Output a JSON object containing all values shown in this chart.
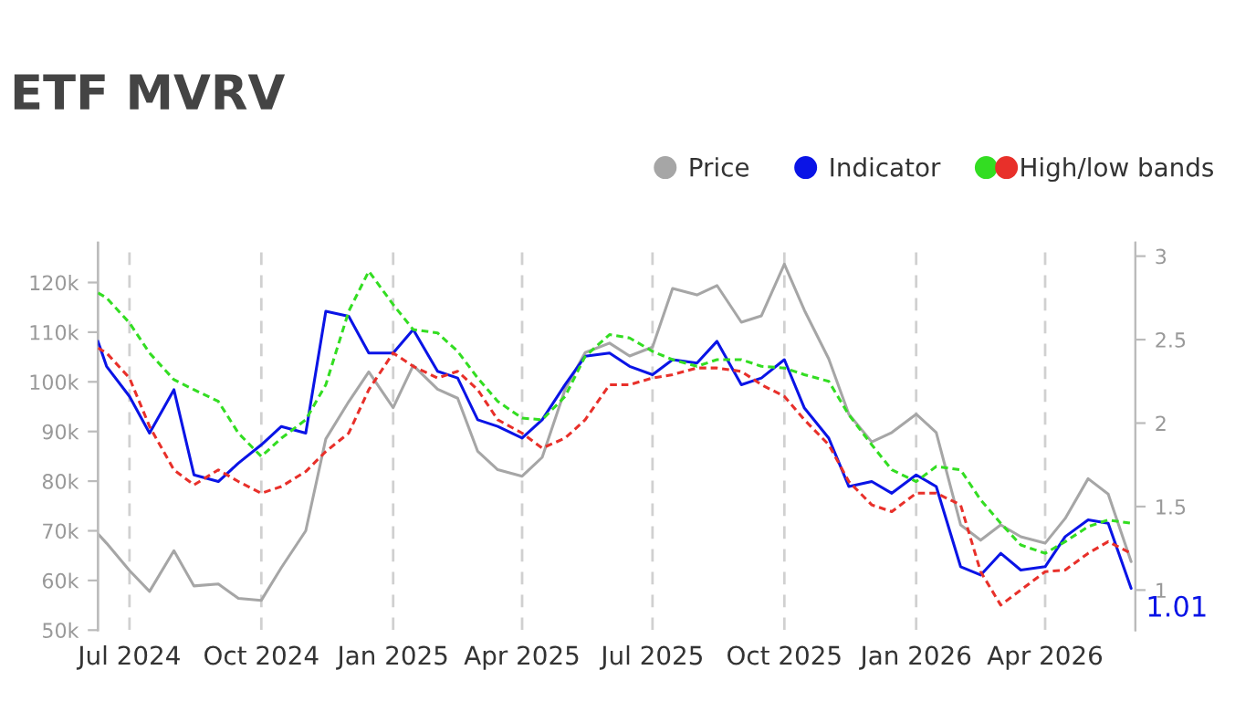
{
  "chart_data": {
    "type": "line",
    "title": "ETF MVRV",
    "x": [
      "2024-06-09",
      "2024-06-15",
      "2024-07-01",
      "2024-07-15",
      "2024-08-01",
      "2024-08-15",
      "2024-09-01",
      "2024-09-15",
      "2024-10-01",
      "2024-10-15",
      "2024-11-01",
      "2024-11-15",
      "2024-12-01",
      "2024-12-15",
      "2025-01-01",
      "2025-01-15",
      "2025-02-01",
      "2025-02-15",
      "2025-03-01",
      "2025-03-15",
      "2025-04-01",
      "2025-04-15",
      "2025-05-01",
      "2025-05-15",
      "2025-06-01",
      "2025-06-15",
      "2025-07-01",
      "2025-07-15",
      "2025-08-01",
      "2025-08-15",
      "2025-09-01",
      "2025-09-15",
      "2025-10-01",
      "2025-10-15",
      "2025-11-01",
      "2025-11-15",
      "2025-12-01",
      "2025-12-15",
      "2026-01-01",
      "2026-01-15",
      "2026-02-01",
      "2026-02-15",
      "2026-03-01",
      "2026-03-15",
      "2026-04-01",
      "2026-04-15",
      "2026-05-01",
      "2026-05-15",
      "2026-05-31"
    ],
    "series": [
      {
        "name": "Price",
        "color": "#a6a6a6",
        "values": [
          69400,
          67500,
          62000,
          57800,
          66000,
          58900,
          59300,
          56400,
          56000,
          62600,
          70000,
          88500,
          96000,
          102000,
          94800,
          103300,
          98500,
          96700,
          86000,
          82300,
          81000,
          84800,
          98500,
          105900,
          107800,
          105200,
          107000,
          118800,
          117500,
          119400,
          112000,
          113300,
          123700,
          114400,
          104600,
          93500,
          87900,
          89800,
          93500,
          89800,
          71200,
          68100,
          71200,
          68800,
          67500,
          72500,
          80500,
          77400,
          63800
        ]
      },
      {
        "name": "Indicator",
        "color": "#0a14e6",
        "axis": "y2",
        "values": [
          2.49,
          2.34,
          2.16,
          1.94,
          2.2,
          1.69,
          1.65,
          1.76,
          1.87,
          1.98,
          1.94,
          2.67,
          2.64,
          2.42,
          2.42,
          2.56,
          2.31,
          2.27,
          2.02,
          1.98,
          1.91,
          2.02,
          2.23,
          2.4,
          2.42,
          2.34,
          2.29,
          2.38,
          2.36,
          2.49,
          2.23,
          2.27,
          2.38,
          2.09,
          1.91,
          1.62,
          1.65,
          1.58,
          1.69,
          1.62,
          1.14,
          1.09,
          1.22,
          1.12,
          1.14,
          1.32,
          1.42,
          1.4,
          1.01
        ]
      },
      {
        "name": "High/low bands",
        "color": "#33dd22",
        "axis": "y2",
        "line_style": "dashed",
        "values": [
          2.78,
          2.75,
          2.6,
          2.42,
          2.26,
          2.2,
          2.13,
          1.94,
          1.8,
          1.91,
          2.02,
          2.23,
          2.67,
          2.91,
          2.71,
          2.56,
          2.54,
          2.43,
          2.27,
          2.13,
          2.03,
          2.02,
          2.16,
          2.4,
          2.53,
          2.51,
          2.43,
          2.38,
          2.34,
          2.38,
          2.38,
          2.34,
          2.33,
          2.29,
          2.25,
          2.05,
          1.87,
          1.72,
          1.65,
          1.74,
          1.72,
          1.54,
          1.4,
          1.27,
          1.22,
          1.29,
          1.38,
          1.42,
          1.4
        ]
      },
      {
        "color": "#e8302a",
        "axis": "y2",
        "line_style": "dashed",
        "values": [
          2.45,
          2.42,
          2.27,
          1.98,
          1.72,
          1.63,
          1.72,
          1.65,
          1.58,
          1.62,
          1.71,
          1.83,
          1.94,
          2.2,
          2.42,
          2.34,
          2.27,
          2.31,
          2.2,
          2.02,
          1.94,
          1.85,
          1.91,
          2.02,
          2.23,
          2.23,
          2.27,
          2.29,
          2.33,
          2.33,
          2.31,
          2.23,
          2.16,
          2.02,
          1.87,
          1.65,
          1.51,
          1.47,
          1.58,
          1.58,
          1.51,
          1.11,
          0.91,
          1.0,
          1.11,
          1.12,
          1.22,
          1.29,
          1.22
        ]
      }
    ],
    "xlim": [
      "2024-06-09",
      "2026-06-03"
    ],
    "xticks": [
      {
        "value": "2024-07-01",
        "label": "Jul 2024"
      },
      {
        "value": "2024-10-01",
        "label": "Oct 2024"
      },
      {
        "value": "2025-01-01",
        "label": "Jan 2025"
      },
      {
        "value": "2025-04-01",
        "label": "Apr 2025"
      },
      {
        "value": "2025-07-01",
        "label": "Jul 2025"
      },
      {
        "value": "2025-10-01",
        "label": "Oct 2025"
      },
      {
        "value": "2026-01-01",
        "label": "Jan 2026"
      },
      {
        "value": "2026-04-01",
        "label": "Apr 2026"
      }
    ],
    "ylim": [
      50000,
      128000
    ],
    "yticks": [
      {
        "value": 50000,
        "label": "50k"
      },
      {
        "value": 60000,
        "label": "60k"
      },
      {
        "value": 70000,
        "label": "70k"
      },
      {
        "value": 80000,
        "label": "80k"
      },
      {
        "value": 90000,
        "label": "90k"
      },
      {
        "value": 100000,
        "label": "100k"
      },
      {
        "value": 110000,
        "label": "110k"
      },
      {
        "value": 120000,
        "label": "120k"
      }
    ],
    "y2lim": [
      0.76,
      3.08
    ],
    "y2ticks": [
      1,
      1.5,
      2,
      2.5,
      3
    ],
    "annotations": [
      "1.01"
    ],
    "grid": "x",
    "legend": "top right",
    "marker": "none",
    "line_style": "solid"
  }
}
